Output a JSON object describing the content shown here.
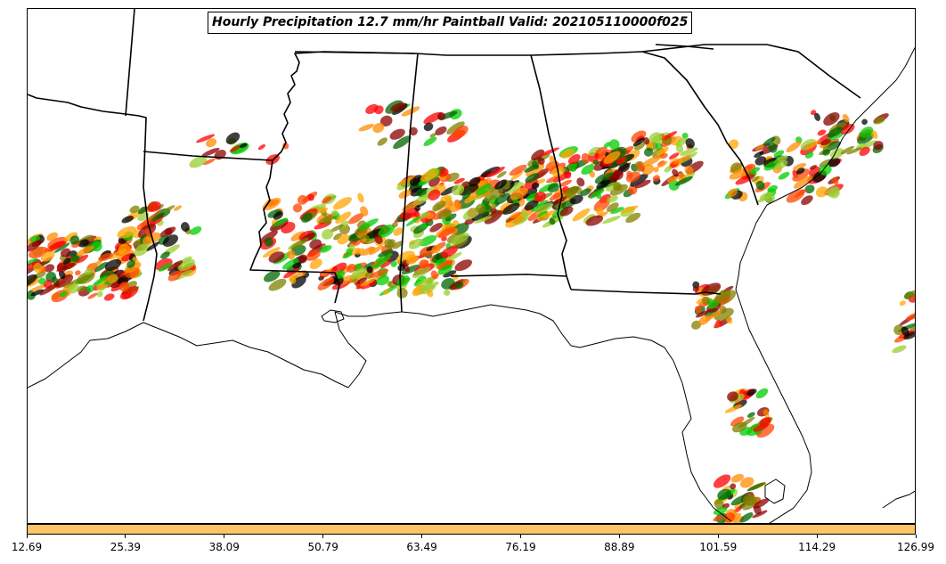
{
  "title": "Hourly Precipitation 12.7 mm/hr Paintball Valid: 202105110000f025",
  "colorbar": {
    "color": "#fec466",
    "ticks": [
      "12.69",
      "25.39",
      "38.09",
      "50.79",
      "63.49",
      "76.19",
      "88.89",
      "101.59",
      "114.29",
      "126.99"
    ]
  },
  "paint_colors": [
    "#ff8c00",
    "#ff0000",
    "#8b0000",
    "#808000",
    "#00cc00",
    "#006400",
    "#ffa500",
    "#ff4500",
    "#9acd32",
    "#000000"
  ]
}
